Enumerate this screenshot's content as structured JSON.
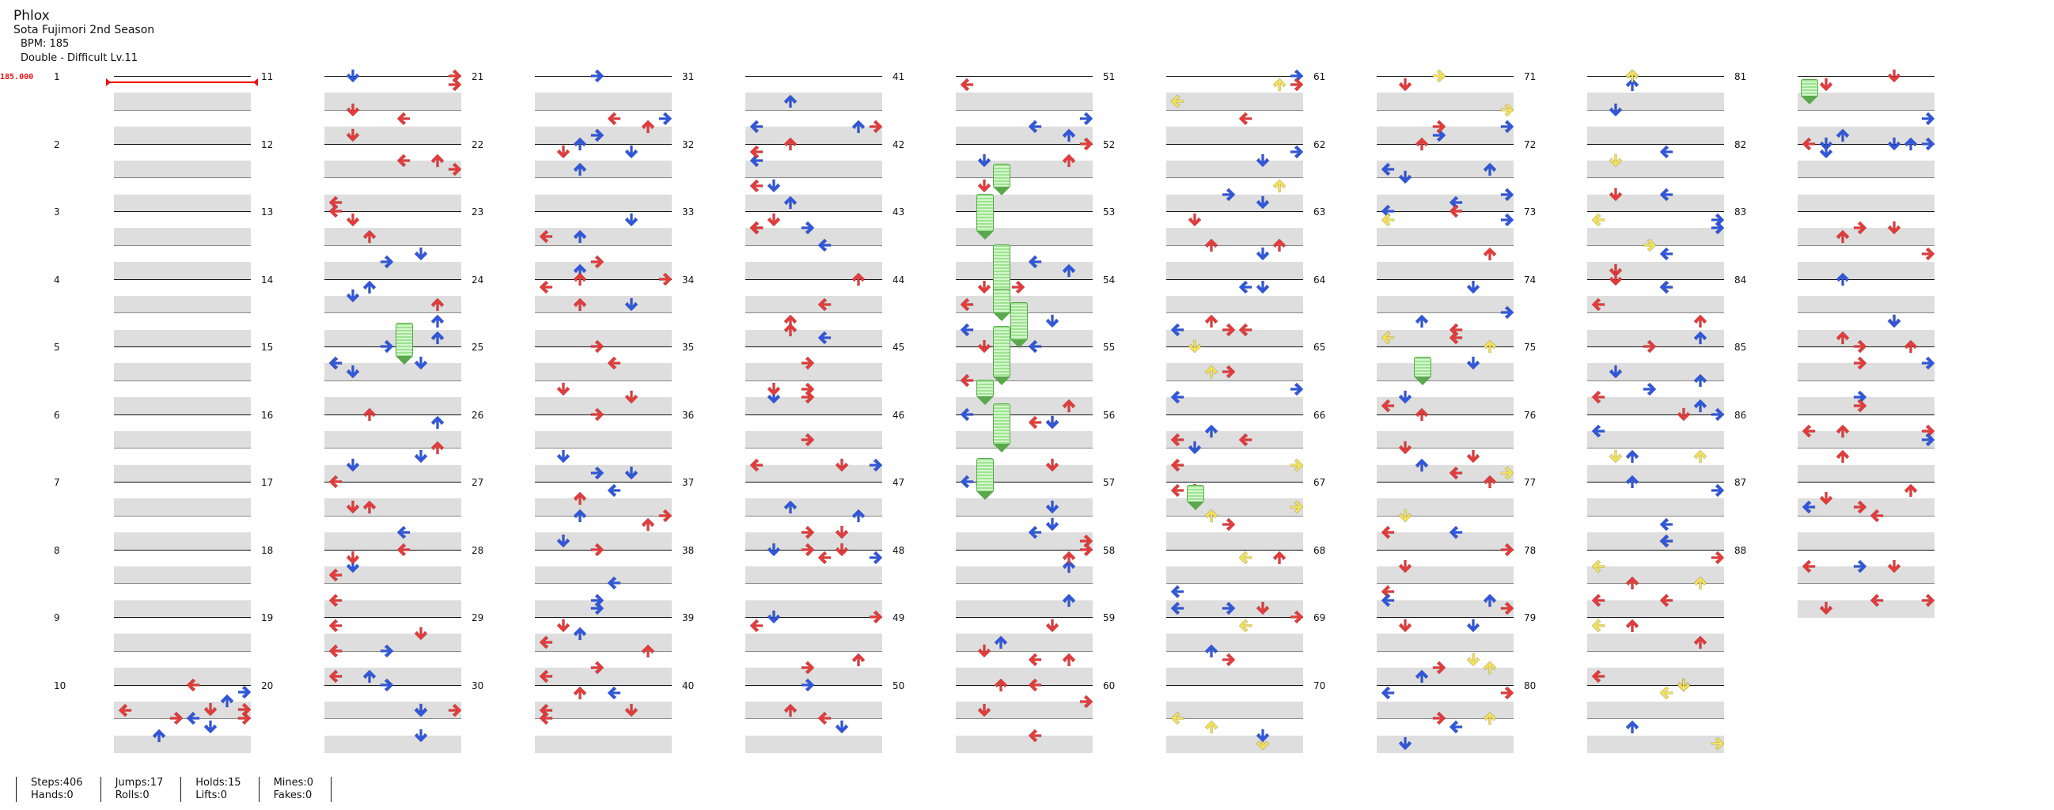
{
  "song": {
    "title": "Phlox",
    "artist": "Sota Fujimori 2nd Season",
    "bpm": "BPM: 185",
    "chart": "Double - Difficult  Lv.11"
  },
  "bpm_marker": "185.000",
  "measures": [
    [
      1,
      2,
      3,
      4,
      5,
      6,
      7,
      8,
      9,
      10
    ],
    [
      11,
      12,
      13,
      14,
      15,
      16,
      17,
      18,
      19,
      20
    ],
    [
      21,
      22,
      23,
      24,
      25,
      26,
      27,
      28,
      29,
      30
    ],
    [
      31,
      32,
      33,
      34,
      35,
      36,
      37,
      38,
      39,
      40
    ],
    [
      41,
      42,
      43,
      44,
      45,
      46,
      47,
      48,
      49,
      50
    ],
    [
      51,
      52,
      53,
      54,
      55,
      56,
      57,
      58,
      59,
      60
    ],
    [
      61,
      62,
      63,
      64,
      65,
      66,
      67,
      68,
      69,
      70
    ],
    [
      71,
      72,
      73,
      74,
      75,
      76,
      77,
      78,
      79,
      80
    ],
    [
      81,
      82,
      83,
      84,
      85,
      86,
      87,
      88
    ]
  ],
  "colors": {
    "red": "#e83a3a",
    "blue": "#2f57e0",
    "yellow": "#f3e15a",
    "hold": "#9be48f",
    "bpm": "#e11111"
  },
  "stats": {
    "steps": "Steps:406",
    "hands": "Hands:0",
    "jumps": "Jumps:17",
    "rolls": "Rolls:0",
    "holds": "Holds:15",
    "lifts": "Lifts:0",
    "mines": "Mines:0",
    "fakes": "Fakes:0"
  }
}
